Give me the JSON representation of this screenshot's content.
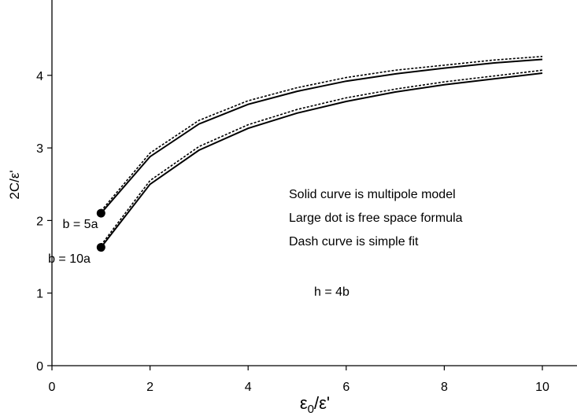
{
  "chart_data": {
    "type": "line",
    "title": "",
    "xlabel": "ε0/ε'",
    "ylabel": "2C/ε'",
    "xlim": [
      0,
      10.7
    ],
    "ylim": [
      0,
      5
    ],
    "x_ticks": [
      0,
      2,
      4,
      6,
      8,
      10
    ],
    "y_ticks": [
      0,
      1,
      2,
      3,
      4
    ],
    "grid": false,
    "series": [
      {
        "style": "solid",
        "x": [
          1,
          2,
          3,
          4,
          5,
          6,
          7,
          8,
          9,
          10
        ],
        "y": [
          2.1,
          2.88,
          3.33,
          3.6,
          3.78,
          3.92,
          4.02,
          4.1,
          4.17,
          4.22
        ]
      },
      {
        "style": "dashed",
        "x": [
          1,
          2,
          3,
          4,
          5,
          6,
          7,
          8,
          9,
          10
        ],
        "y": [
          2.13,
          2.93,
          3.38,
          3.65,
          3.83,
          3.97,
          4.07,
          4.14,
          4.21,
          4.26
        ]
      },
      {
        "style": "solid",
        "x": [
          1,
          2,
          3,
          4,
          5,
          6,
          7,
          8,
          9,
          10
        ],
        "y": [
          1.63,
          2.5,
          2.97,
          3.27,
          3.48,
          3.64,
          3.77,
          3.87,
          3.95,
          4.03
        ]
      },
      {
        "style": "dashed",
        "x": [
          1,
          2,
          3,
          4,
          5,
          6,
          7,
          8,
          9,
          10
        ],
        "y": [
          1.66,
          2.55,
          3.02,
          3.32,
          3.53,
          3.69,
          3.81,
          3.91,
          3.99,
          4.07
        ]
      }
    ],
    "points": [
      {
        "x": 1,
        "y": 2.1,
        "label": "b = 5a"
      },
      {
        "x": 1,
        "y": 1.63,
        "label": "b = 10a"
      }
    ],
    "annotations": [
      "Solid curve is multipole model",
      "Large dot is free space formula",
      "Dash curve is simple fit",
      "h = 4b"
    ]
  }
}
